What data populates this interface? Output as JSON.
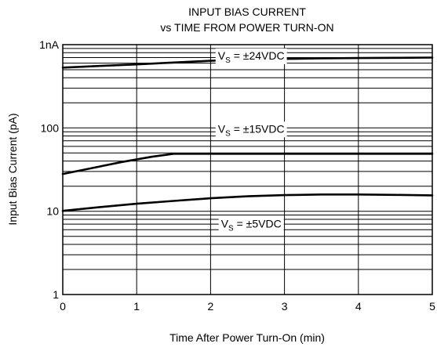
{
  "chart_data": {
    "type": "line",
    "title": [
      "INPUT BIAS CURRENT",
      "vs TIME FROM POWER TURN-ON"
    ],
    "xlabel": "Time After Power Turn-On (min)",
    "ylabel": "Input Bias Current (pA)",
    "xlim": [
      0,
      5
    ],
    "ylim": [
      1,
      1000
    ],
    "yscale": "log",
    "grid": true,
    "x_ticks": [
      {
        "value": 0,
        "label": "0"
      },
      {
        "value": 1,
        "label": "1"
      },
      {
        "value": 2,
        "label": "2"
      },
      {
        "value": 3,
        "label": "3"
      },
      {
        "value": 4,
        "label": "4"
      },
      {
        "value": 5,
        "label": "5"
      }
    ],
    "y_ticks": [
      {
        "value": 1,
        "label": "1"
      },
      {
        "value": 10,
        "label": "10"
      },
      {
        "value": 100,
        "label": "100"
      },
      {
        "value": 1000,
        "label": "1nA"
      }
    ],
    "series": [
      {
        "name": "±24VDC",
        "annotation": {
          "prefix": "V",
          "sub": "S",
          "text": " = ±24VDC",
          "x": 2.55,
          "y": 740
        },
        "points": [
          [
            0,
            530
          ],
          [
            0.5,
            555
          ],
          [
            1,
            580
          ],
          [
            1.5,
            610
          ],
          [
            2,
            640
          ],
          [
            2.5,
            660
          ],
          [
            3,
            675
          ],
          [
            3.5,
            685
          ],
          [
            4,
            690
          ],
          [
            4.5,
            695
          ],
          [
            5,
            700
          ]
        ]
      },
      {
        "name": "±15VDC",
        "annotation": {
          "prefix": "V",
          "sub": "S",
          "text": " = ±15VDC",
          "x": 2.55,
          "y": 98
        },
        "points": [
          [
            0,
            28
          ],
          [
            0.4,
            33
          ],
          [
            0.8,
            39
          ],
          [
            1.2,
            45
          ],
          [
            1.5,
            49
          ],
          [
            2,
            49
          ],
          [
            3,
            49
          ],
          [
            4,
            49
          ],
          [
            5,
            49
          ]
        ]
      },
      {
        "name": "±5VDC",
        "annotation": {
          "prefix": "V",
          "sub": "S",
          "text": " = ±5VDC",
          "x": 2.55,
          "y": 7.1
        },
        "points": [
          [
            0,
            10.1
          ],
          [
            0.5,
            11.2
          ],
          [
            1,
            12.3
          ],
          [
            1.5,
            13.3
          ],
          [
            2,
            14.3
          ],
          [
            2.5,
            15.1
          ],
          [
            3,
            15.6
          ],
          [
            3.5,
            15.9
          ],
          [
            4,
            15.9
          ],
          [
            4.5,
            15.7
          ],
          [
            5,
            15.5
          ]
        ]
      }
    ]
  }
}
